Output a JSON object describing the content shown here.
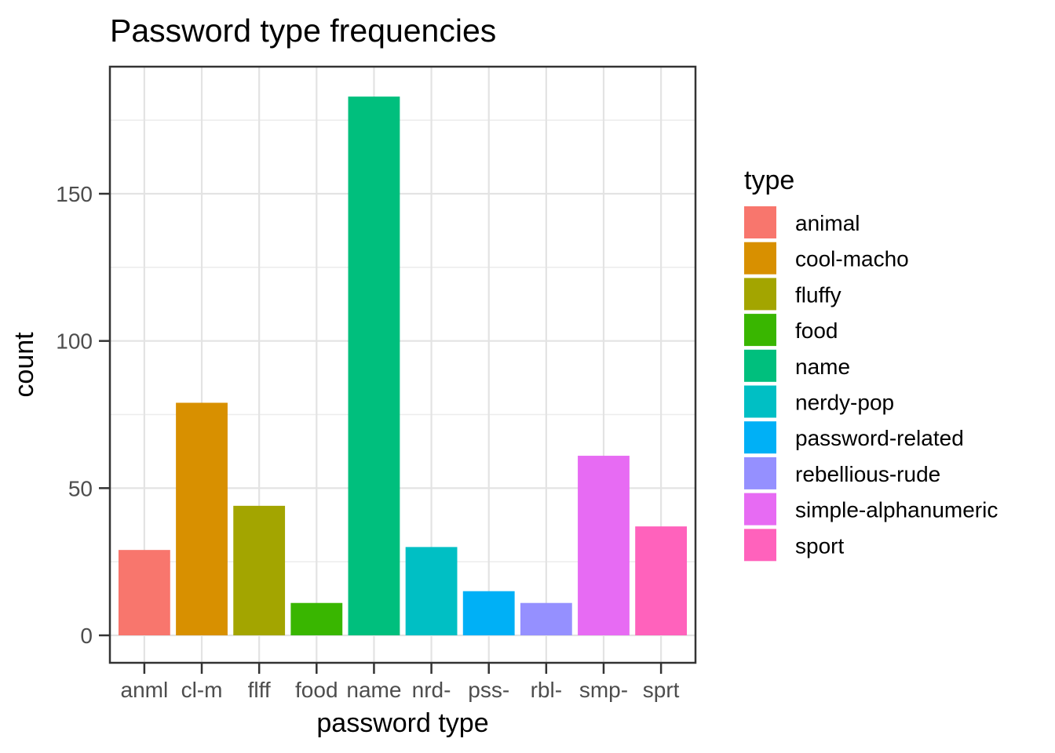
{
  "chart_data": {
    "type": "bar",
    "title": "Password type frequencies",
    "xlabel": "password type",
    "ylabel": "count",
    "categories": [
      "anml",
      "cl-m",
      "flff",
      "food",
      "name",
      "nrd-",
      "pss-",
      "rbl-",
      "smp-",
      "sprt"
    ],
    "values": [
      29,
      79,
      44,
      11,
      183,
      30,
      15,
      11,
      61,
      37
    ],
    "series_full_names": [
      "animal",
      "cool-macho",
      "fluffy",
      "food",
      "name",
      "nerdy-pop",
      "password-related",
      "rebellious-rude",
      "simple-alphanumeric",
      "sport"
    ],
    "bar_colors": [
      "#F8766D",
      "#D89000",
      "#A3A500",
      "#39B600",
      "#00BF7D",
      "#00BFC4",
      "#00B0F6",
      "#9590FF",
      "#E76BF3",
      "#FF62BC"
    ],
    "y_ticks": [
      0,
      50,
      100,
      150
    ],
    "y_minor_ticks": [
      25,
      75,
      125,
      175
    ],
    "ylim": [
      0,
      183
    ],
    "grid": true,
    "legend_position": "right"
  },
  "legend": {
    "title": "type",
    "entries": [
      {
        "label": "animal",
        "color": "#F8766D"
      },
      {
        "label": "cool-macho",
        "color": "#D89000"
      },
      {
        "label": "fluffy",
        "color": "#A3A500"
      },
      {
        "label": "food",
        "color": "#39B600"
      },
      {
        "label": "name",
        "color": "#00BF7D"
      },
      {
        "label": "nerdy-pop",
        "color": "#00BFC4"
      },
      {
        "label": "password-related",
        "color": "#00B0F6"
      },
      {
        "label": "rebellious-rude",
        "color": "#9590FF"
      },
      {
        "label": "simple-alphanumeric",
        "color": "#E76BF3"
      },
      {
        "label": "sport",
        "color": "#FF62BC"
      }
    ]
  },
  "colors": {
    "background": "#FFFFFF",
    "panel_background": "#FFFFFF",
    "panel_border": "#333333",
    "tick_mark": "#333333",
    "tick_label_text": "#4D4D4D",
    "grid_major": "#E3E3E3",
    "grid_minor": "#EDEDED",
    "title_text": "#000000"
  }
}
